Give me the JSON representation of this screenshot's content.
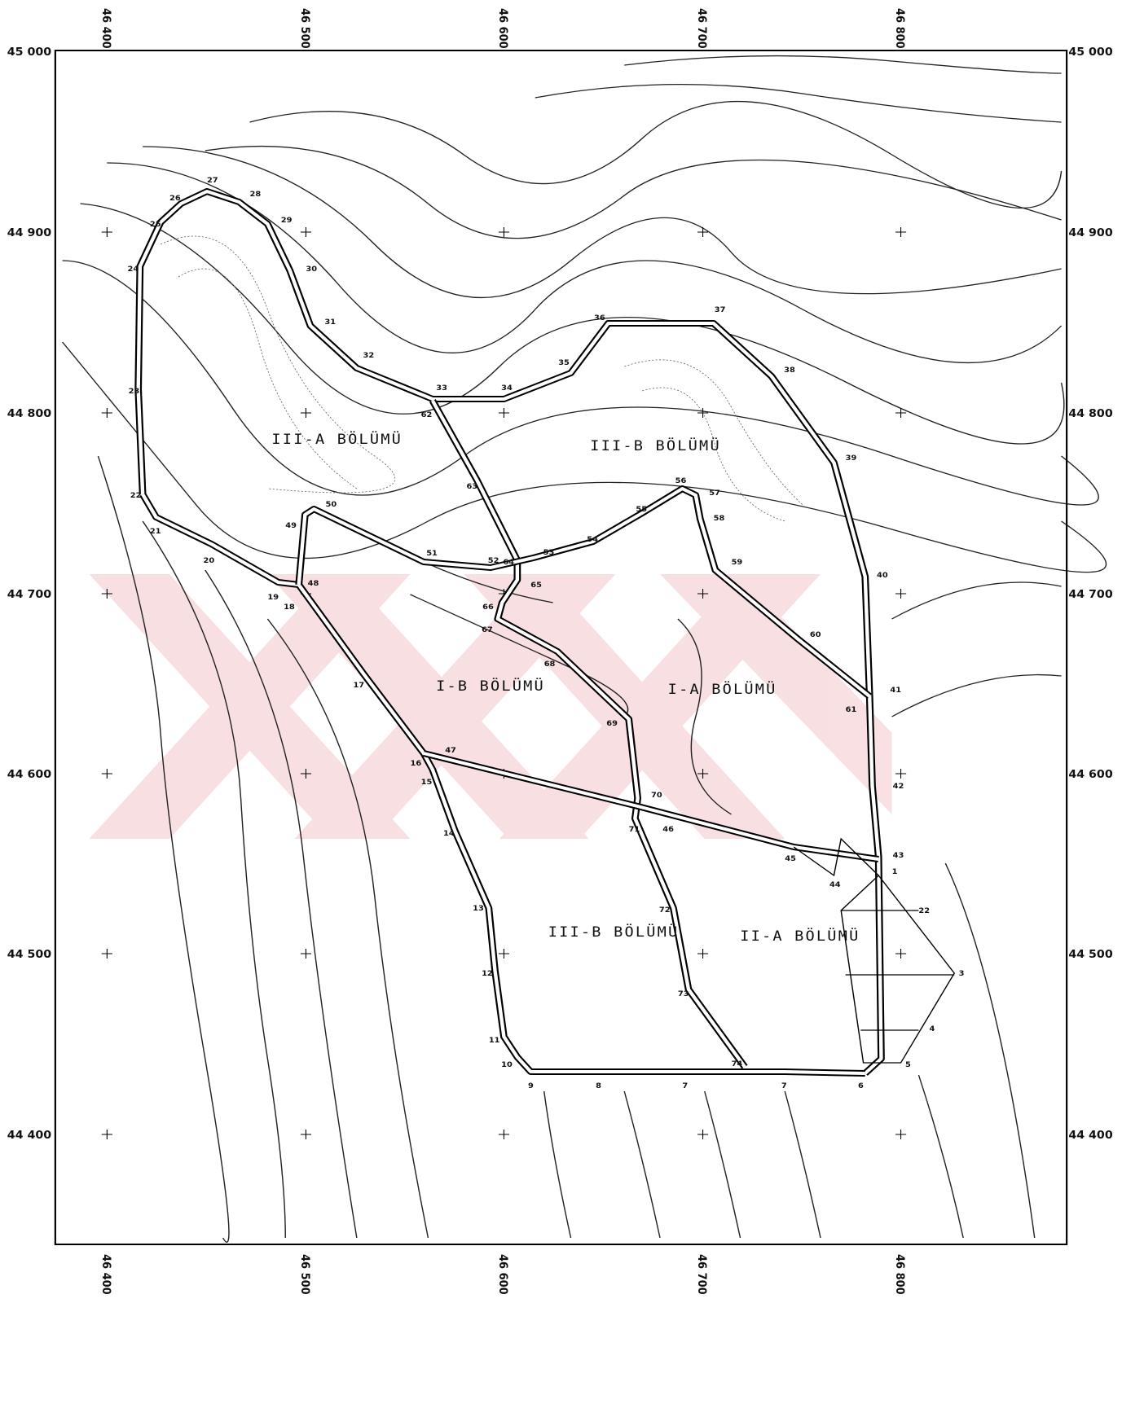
{
  "map": {
    "x_labels": [
      "46 400",
      "46 500",
      "46 600",
      "46 700",
      "46 800"
    ],
    "y_labels": [
      "45 000",
      "44 900",
      "44 800",
      "44 700",
      "44 600",
      "44 500",
      "44 400"
    ],
    "regions": [
      "III-A BÖLÜMÜ",
      "III-B BÖLÜMÜ",
      "I-B BÖLÜMÜ",
      "I-A BÖLÜMÜ",
      "III-B BÖLÜMÜ",
      "II-A BÖLÜMÜ"
    ],
    "points": [
      "1",
      "3",
      "4",
      "5",
      "6",
      "7",
      "7",
      "8",
      "9",
      "10",
      "11",
      "12",
      "13",
      "14",
      "15",
      "16",
      "17",
      "18",
      "19",
      "20",
      "21",
      "22",
      "23",
      "24",
      "25",
      "26",
      "27",
      "28",
      "29",
      "30",
      "31",
      "32",
      "33",
      "34",
      "35",
      "36",
      "37",
      "38",
      "39",
      "40",
      "41",
      "42",
      "43",
      "44",
      "45",
      "46",
      "47",
      "48",
      "49",
      "50",
      "51",
      "52",
      "53",
      "54",
      "55",
      "56",
      "57",
      "58",
      "59",
      "60",
      "61",
      "62",
      "63",
      "64",
      "65",
      "66",
      "67",
      "68",
      "69",
      "70",
      "71",
      "72",
      "73",
      "74",
      "22"
    ]
  }
}
